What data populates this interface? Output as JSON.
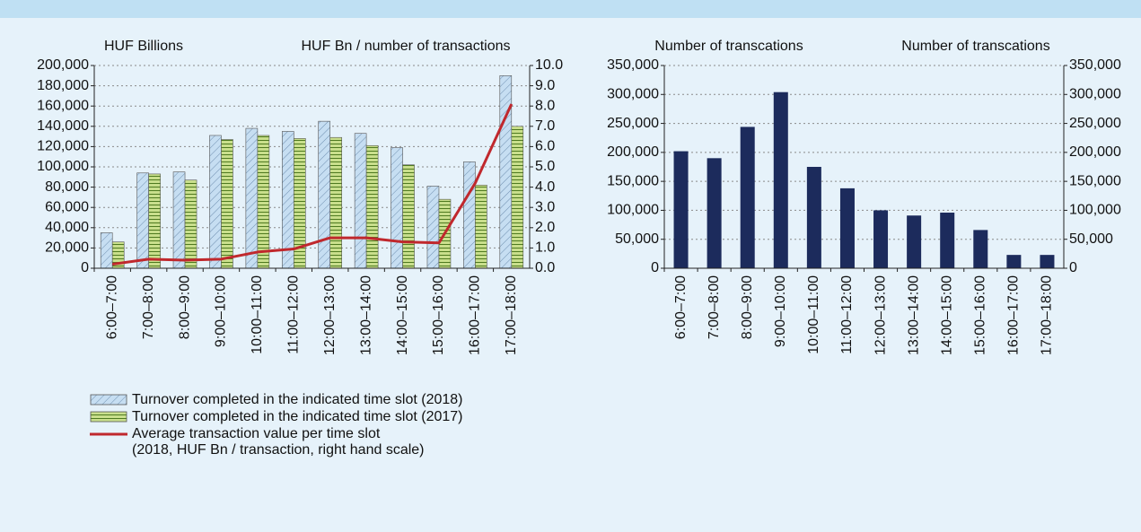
{
  "chart_data": [
    {
      "type": "bar_line",
      "y_label": "HUF Billions",
      "y2_label": "HUF Bn / number of transactions",
      "categories": [
        "6:00–7:00",
        "7:00–8:00",
        "8:00–9:00",
        "9:00–10:00",
        "10:00–11:00",
        "11:00–12:00",
        "12:00–13:00",
        "13:00–14:00",
        "14:00–15:00",
        "15:00–16:00",
        "16:00–17:00",
        "17:00–18:00"
      ],
      "series": [
        {
          "name": "Turnover completed in the indicated time slot (2018)",
          "type": "bar",
          "color": "#c6def2",
          "pattern": "diagonal",
          "values": [
            35000,
            94000,
            95000,
            131000,
            138000,
            135000,
            145000,
            133000,
            119000,
            81000,
            105000,
            190000
          ]
        },
        {
          "name": "Turnover completed in the indicated time slot (2017)",
          "type": "bar",
          "color": "#c9df8c",
          "pattern": "horizontal",
          "values": [
            26000,
            93000,
            87000,
            127000,
            131000,
            128000,
            129000,
            121000,
            102000,
            68000,
            82000,
            140000
          ]
        },
        {
          "name": "Average transaction value per time slot\n(2018, HUF Bn / transaction, right hand scale)",
          "type": "line",
          "axis": "y2",
          "color": "#c0282d",
          "values": [
            0.2,
            0.45,
            0.4,
            0.45,
            0.8,
            0.95,
            1.5,
            1.5,
            1.3,
            1.25,
            4.2,
            8.1
          ]
        }
      ],
      "ylim": [
        0,
        200000
      ],
      "yticks": [
        0,
        {
          "value": 20000,
          "label": "20,000"
        },
        {
          "value": 40000,
          "label": "40,000"
        },
        {
          "value": 60000,
          "label": "60,000"
        },
        {
          "value": 80000,
          "label": "80,000"
        },
        {
          "value": 100000,
          "label": "100,000"
        },
        {
          "value": 120000,
          "label": "120,000"
        },
        {
          "value": 140000,
          "label": "140,000"
        },
        {
          "value": 160000,
          "label": "160,000"
        },
        {
          "value": 180000,
          "label": "180,000"
        },
        {
          "value": 200000,
          "label": "200,000"
        }
      ],
      "y2lim": [
        0,
        10
      ],
      "y2ticks": [
        {
          "value": 0,
          "label": "0.0"
        },
        {
          "value": 1,
          "label": "1.0"
        },
        {
          "value": 2,
          "label": "2.0"
        },
        {
          "value": 3,
          "label": "3.0"
        },
        {
          "value": 4,
          "label": "4.0"
        },
        {
          "value": 5,
          "label": "5.0"
        },
        {
          "value": 6,
          "label": "6.0"
        },
        {
          "value": 7,
          "label": "7.0"
        },
        {
          "value": 8,
          "label": "8.0"
        },
        {
          "value": 9,
          "label": "9.0"
        },
        {
          "value": 10,
          "label": "10.0"
        }
      ],
      "grid": true
    },
    {
      "type": "bar",
      "y_label": "Number of transcations",
      "y2_label": "Number of transcations",
      "categories": [
        "6:00–7:00",
        "7:00–8:00",
        "8:00–9:00",
        "9:00–10:00",
        "10:00–11:00",
        "11:00–12:00",
        "12:00–13:00",
        "13:00–14:00",
        "14:00–15:00",
        "15:00–16:00",
        "16:00–17:00",
        "17:00–18:00"
      ],
      "series": [
        {
          "type": "bar",
          "color": "#1c2b5c",
          "values": [
            202000,
            190000,
            244000,
            304000,
            175000,
            138000,
            100000,
            91000,
            96000,
            66000,
            23000,
            23000
          ]
        }
      ],
      "ylim": [
        0,
        350000
      ],
      "yticks": [
        0,
        {
          "value": 50000,
          "label": "50,000"
        },
        {
          "value": 100000,
          "label": "100,000"
        },
        {
          "value": 150000,
          "label": "150,000"
        },
        {
          "value": 200000,
          "label": "200,000"
        },
        {
          "value": 250000,
          "label": "250,000"
        },
        {
          "value": 300000,
          "label": "300,000"
        },
        {
          "value": 350000,
          "label": "350,000"
        }
      ],
      "y2lim": [
        0,
        350000
      ],
      "y2ticks": [
        0,
        {
          "value": 50000,
          "label": "50,000"
        },
        {
          "value": 100000,
          "label": "100,000"
        },
        {
          "value": 150000,
          "label": "150,000"
        },
        {
          "value": 200000,
          "label": "200,000"
        },
        {
          "value": 250000,
          "label": "250,000"
        },
        {
          "value": 300000,
          "label": "300,000"
        },
        {
          "value": 350000,
          "label": "350,000"
        }
      ],
      "grid": true
    }
  ]
}
